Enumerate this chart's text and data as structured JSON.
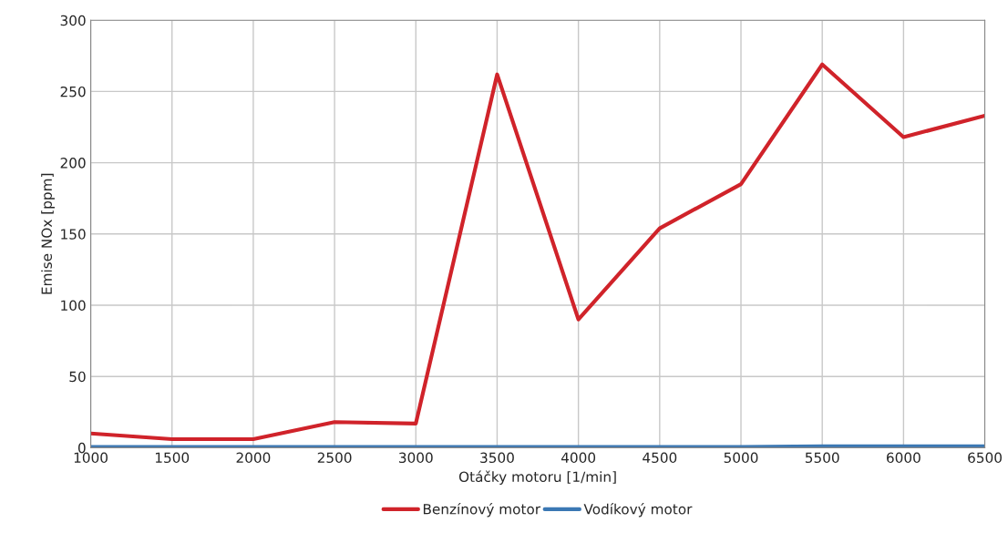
{
  "chart_data": {
    "type": "line",
    "xlabel": "Otáčky motoru [1/min]",
    "ylabel": "Emise NOx [ppm]",
    "x": [
      1000,
      1500,
      2000,
      2500,
      3000,
      3500,
      4000,
      4500,
      5000,
      5500,
      6000,
      6500
    ],
    "series": [
      {
        "name": "Benzínový motor",
        "color": "#d0232a",
        "values": [
          10,
          6,
          6,
          18,
          17,
          262,
          90,
          154,
          185,
          269,
          218,
          233
        ]
      },
      {
        "name": "Vodíkový motor",
        "color": "#3b78b4",
        "values": [
          0.5,
          0.5,
          0.5,
          0.5,
          0.5,
          0.5,
          0.5,
          0.5,
          0.5,
          1,
          1,
          1
        ]
      }
    ],
    "xlim": [
      1000,
      6500
    ],
    "xticks": [
      1000,
      1500,
      2000,
      2500,
      3000,
      3500,
      4000,
      4500,
      5000,
      5500,
      6000,
      6500
    ],
    "ylim": [
      0,
      300
    ],
    "yticks": [
      0,
      50,
      100,
      150,
      200,
      250,
      300
    ],
    "grid": true,
    "legend": "bottom",
    "marker": "none",
    "line_style": "solid"
  }
}
